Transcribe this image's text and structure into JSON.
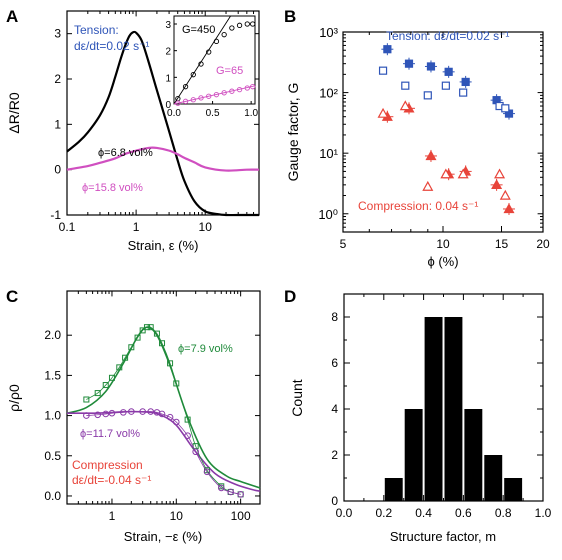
{
  "colors": {
    "blue": "#2f55b8",
    "magenta": "#d04fc0",
    "red": "#e8443a",
    "green": "#1f8a3a",
    "purple": "#8a3aa8",
    "black": "#000000"
  },
  "chart_data": [
    {
      "panel": "A",
      "type": "line",
      "xscale": "log",
      "xlabel": "Strain, ε (%)",
      "ylabel": "ΔR/R0",
      "xlim": [
        0.1,
        60
      ],
      "ylim": [
        -1,
        3.5
      ],
      "xticks": [
        "0.1",
        "1",
        "10"
      ],
      "yticks": [
        "-1",
        "0",
        "1",
        "2",
        "3"
      ],
      "annotation_tension": "Tension:",
      "annotation_rate": "dε/dt=0.02 s⁻¹",
      "series": [
        {
          "name": "ϕ=6.8 vol%",
          "color": "#000000",
          "x": [
            0.1,
            0.15,
            0.2,
            0.3,
            0.4,
            0.5,
            0.6,
            0.7,
            0.8,
            0.9,
            1.0,
            1.2,
            1.5,
            2,
            3,
            4,
            5,
            7,
            10,
            15,
            20,
            30,
            60
          ],
          "y": [
            0.4,
            0.62,
            0.82,
            1.2,
            1.6,
            2.05,
            2.45,
            2.75,
            2.95,
            3.03,
            3.02,
            2.85,
            2.4,
            1.75,
            0.85,
            0.2,
            -0.25,
            -0.7,
            -0.92,
            -0.98,
            -1.0,
            -1.0,
            -1.0
          ]
        },
        {
          "name": "ϕ=15.8 vol%",
          "color": "#d04fc0",
          "x": [
            0.1,
            0.2,
            0.3,
            0.5,
            0.7,
            1.0,
            1.5,
            2,
            3,
            4,
            5,
            7,
            10,
            20,
            40,
            60
          ],
          "y": [
            0.0,
            0.08,
            0.15,
            0.25,
            0.35,
            0.42,
            0.48,
            0.48,
            0.42,
            0.34,
            0.26,
            0.16,
            0.05,
            -0.02,
            0.0,
            0.0
          ]
        }
      ],
      "inset": {
        "xlim": [
          0,
          1.05
        ],
        "ylim": [
          0,
          3.3
        ],
        "xticks": [
          "0.0",
          "0.5",
          "1.0"
        ],
        "yticks": [
          "0",
          "1",
          "2",
          "3"
        ],
        "series": [
          {
            "name": "G=450",
            "color": "#000000",
            "x": [
              0.05,
              0.15,
              0.25,
              0.35,
              0.45,
              0.55,
              0.65,
              0.75,
              0.85,
              0.95,
              1.02
            ],
            "y": [
              0.2,
              0.65,
              1.1,
              1.5,
              1.95,
              2.35,
              2.6,
              2.85,
              2.95,
              3.0,
              3.0
            ]
          },
          {
            "name": "G=65",
            "color": "#d04fc0",
            "x": [
              0.05,
              0.15,
              0.25,
              0.35,
              0.45,
              0.55,
              0.65,
              0.75,
              0.85,
              0.95,
              1.02
            ],
            "y": [
              0.03,
              0.1,
              0.16,
              0.23,
              0.29,
              0.35,
              0.42,
              0.48,
              0.54,
              0.6,
              0.65
            ]
          }
        ],
        "fit_lines": [
          {
            "color": "#000000",
            "slope": 4.5
          },
          {
            "color": "#d04fc0",
            "slope": 0.65
          }
        ]
      }
    },
    {
      "panel": "B",
      "type": "scatter",
      "xscale": "log",
      "yscale": "log",
      "xlabel": "ϕ (%)",
      "ylabel": "Gauge factor, G",
      "xlim": [
        5,
        20
      ],
      "ylim": [
        0.5,
        1000
      ],
      "xticks": [
        "5",
        "10",
        "15",
        "20"
      ],
      "yticks": [
        "10⁰",
        "10¹",
        "10²",
        "10³"
      ],
      "annotation_tension": "Tension: dε/dt=0.02 s⁻¹",
      "annotation_compression": "Compression: 0.04 s⁻¹",
      "series": [
        {
          "name": "Tension filled",
          "color": "#2f55b8",
          "marker": "square-filled",
          "x": [
            6.8,
            7.9,
            9.2,
            10.4,
            11.7,
            14.5,
            15.8
          ],
          "y": [
            520,
            300,
            270,
            220,
            150,
            75,
            45
          ]
        },
        {
          "name": "Tension open",
          "color": "#2f55b8",
          "marker": "square-open",
          "x": [
            6.6,
            7.7,
            9.0,
            10.2,
            11.5,
            14.8,
            15.4
          ],
          "y": [
            230,
            130,
            90,
            130,
            100,
            60,
            55
          ]
        },
        {
          "name": "Compression filled",
          "color": "#e8443a",
          "marker": "triangle-filled",
          "x": [
            6.8,
            7.9,
            9.2,
            10.4,
            11.7,
            14.5,
            15.8
          ],
          "y": [
            40,
            55,
            9,
            4.5,
            5,
            3,
            1.2
          ]
        },
        {
          "name": "Compression open",
          "color": "#e8443a",
          "marker": "triangle-open",
          "x": [
            6.6,
            7.7,
            9.0,
            10.2,
            11.5,
            14.8,
            15.4
          ],
          "y": [
            45,
            60,
            2.8,
            4.5,
            4.5,
            4.5,
            2
          ]
        }
      ]
    },
    {
      "panel": "C",
      "type": "line",
      "xscale": "log",
      "xlabel": "Strain, −ε (%)",
      "ylabel": "ρ/ρ0",
      "xlim": [
        0.2,
        200
      ],
      "ylim": [
        -0.1,
        2.55
      ],
      "xticks": [
        "1",
        "10",
        "100"
      ],
      "yticks": [
        "0.0",
        "0.5",
        "1.0",
        "1.5",
        "2.0"
      ],
      "annotation_compression": "Compression",
      "annotation_rate": "dε/dt=-0.04 s⁻¹",
      "series": [
        {
          "name": "ϕ=7.9 vol%",
          "color": "#1f8a3a",
          "x": [
            0.4,
            0.6,
            0.8,
            1.0,
            1.3,
            1.6,
            2.0,
            2.5,
            3.0,
            3.5,
            4.0,
            5,
            6,
            8,
            10,
            15,
            20,
            30,
            50,
            70,
            100
          ],
          "y": [
            1.2,
            1.28,
            1.38,
            1.47,
            1.6,
            1.72,
            1.85,
            1.97,
            2.06,
            2.1,
            2.1,
            2.02,
            1.9,
            1.65,
            1.4,
            0.95,
            0.62,
            0.32,
            0.12,
            0.05,
            0.02
          ]
        },
        {
          "name": "ϕ=11.7 vol%",
          "color": "#8a3aa8",
          "x": [
            0.4,
            0.6,
            0.8,
            1.0,
            1.5,
            2,
            3,
            4,
            5,
            6,
            8,
            10,
            15,
            20,
            30,
            50,
            70,
            100
          ],
          "y": [
            1.0,
            1.01,
            1.02,
            1.03,
            1.04,
            1.05,
            1.05,
            1.05,
            1.04,
            1.02,
            0.98,
            0.92,
            0.75,
            0.55,
            0.3,
            0.1,
            0.05,
            0.02
          ]
        }
      ],
      "fit_lines": [
        {
          "color": "#1f8a3a",
          "x": [
            0.2,
            0.4,
            0.8,
            1.5,
            2.5,
            3.5,
            5,
            8,
            15,
            30,
            60,
            100,
            200
          ],
          "y": [
            1.03,
            1.1,
            1.3,
            1.65,
            1.98,
            2.1,
            2.0,
            1.62,
            0.98,
            0.46,
            0.25,
            0.18,
            0.1
          ]
        },
        {
          "color": "#8a3aa8",
          "x": [
            0.2,
            0.5,
            1,
            2,
            4,
            6,
            10,
            20,
            40,
            80,
            150,
            200
          ],
          "y": [
            1.03,
            1.03,
            1.04,
            1.05,
            1.04,
            1.0,
            0.88,
            0.55,
            0.28,
            0.15,
            0.08,
            0.06
          ]
        }
      ]
    },
    {
      "panel": "D",
      "type": "bar",
      "xlabel": "Structure factor, m",
      "ylabel": "Count",
      "xlim": [
        0,
        1.0
      ],
      "ylim": [
        0,
        9
      ],
      "xticks": [
        "0.0",
        "0.1",
        "0.2",
        "0.3",
        "0.4",
        "0.5",
        "0.6",
        "0.7",
        "0.8",
        "0.9",
        "1.0"
      ],
      "yticks": [
        "0",
        "2",
        "4",
        "6",
        "8"
      ],
      "bin_width": 0.1,
      "bins": [
        0.25,
        0.35,
        0.45,
        0.55,
        0.65,
        0.75,
        0.85
      ],
      "values": [
        1,
        4,
        8,
        8,
        4,
        2,
        1
      ]
    }
  ],
  "panel_labels": {
    "a": "A",
    "b": "B",
    "c": "C",
    "d": "D"
  },
  "labels": {
    "a_phi_black": "ϕ=6.8 vol%",
    "a_phi_mag": "ϕ=15.8 vol%",
    "a_G450": "G=450",
    "a_G65": "G=65",
    "c_phi_green": "ϕ=7.9 vol%",
    "c_phi_purple": "ϕ=11.7 vol%"
  }
}
